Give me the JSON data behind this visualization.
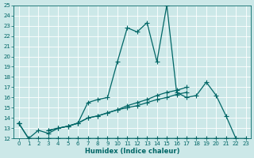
{
  "xlabel": "Humidex (Indice chaleur)",
  "x_values": [
    0,
    1,
    2,
    3,
    4,
    5,
    6,
    7,
    8,
    9,
    10,
    11,
    12,
    13,
    14,
    15,
    16,
    17,
    18,
    19,
    20,
    21,
    22,
    23
  ],
  "line_peak_y": [
    13.5,
    12.0,
    12.8,
    12.5,
    13.0,
    13.2,
    13.5,
    15.5,
    15.8,
    16.0,
    19.5,
    22.8,
    22.4,
    23.3,
    19.5,
    25.0,
    16.5,
    16.0,
    16.2,
    17.5,
    16.2,
    14.2,
    12.0,
    null
  ],
  "line_flat_y": [
    13.5,
    12.0,
    12.0,
    12.0,
    12.0,
    12.0,
    12.0,
    12.0,
    12.0,
    12.0,
    12.0,
    12.0,
    12.0,
    12.0,
    12.0,
    12.0,
    12.0,
    12.0,
    12.0,
    12.0,
    12.0,
    12.0,
    12.0,
    12.0
  ],
  "line_trend1_y": [
    13.5,
    null,
    null,
    12.8,
    13.0,
    13.2,
    13.5,
    14.0,
    14.2,
    14.5,
    14.8,
    15.2,
    15.5,
    15.8,
    16.2,
    16.5,
    16.7,
    17.0,
    null,
    null,
    null,
    null,
    null,
    null
  ],
  "line_trend2_y": [
    13.5,
    null,
    null,
    12.8,
    13.0,
    13.2,
    13.5,
    14.0,
    14.2,
    14.5,
    14.8,
    15.0,
    15.2,
    15.5,
    15.8,
    16.0,
    16.3,
    16.5,
    null,
    null,
    null,
    null,
    null,
    null
  ],
  "bg_color": "#cce8e8",
  "grid_color": "#b0d4d4",
  "line_color": "#006666",
  "ylim": [
    12,
    25
  ],
  "xlim": [
    -0.5,
    23.5
  ],
  "yticks": [
    12,
    13,
    14,
    15,
    16,
    17,
    18,
    19,
    20,
    21,
    22,
    23,
    24,
    25
  ],
  "xticks": [
    0,
    1,
    2,
    3,
    4,
    5,
    6,
    7,
    8,
    9,
    10,
    11,
    12,
    13,
    14,
    15,
    16,
    17,
    18,
    19,
    20,
    21,
    22,
    23
  ]
}
